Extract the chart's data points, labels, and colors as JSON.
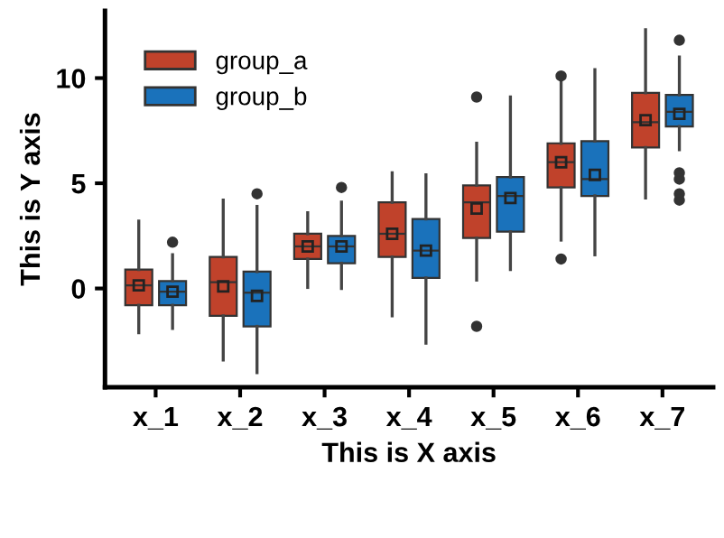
{
  "chart_data": {
    "type": "box",
    "xlabel": "This is X axis",
    "ylabel": "This is Y axis",
    "categories": [
      "x_1",
      "x_2",
      "x_3",
      "x_4",
      "x_5",
      "x_6",
      "x_7"
    ],
    "ylim": [
      -4.7,
      13.2
    ],
    "yticks": [
      0,
      5,
      10
    ],
    "legend": "top left",
    "grid": false,
    "series": [
      {
        "name": "group_a",
        "color": "#c0422b",
        "boxes": [
          {
            "low": -2.1,
            "q1": -0.8,
            "median": 0.15,
            "q3": 0.9,
            "high": 3.2,
            "mean": 0.15
          },
          {
            "low": -3.4,
            "q1": -1.3,
            "median": 0.3,
            "q3": 1.5,
            "high": 4.2,
            "mean": 0.1
          },
          {
            "low": 0.05,
            "q1": 1.4,
            "median": 2.0,
            "q3": 2.6,
            "high": 3.6,
            "mean": 2.0
          },
          {
            "low": -1.3,
            "q1": 1.5,
            "median": 2.6,
            "q3": 4.1,
            "high": 5.5,
            "mean": 2.6
          },
          {
            "low": 0.4,
            "q1": 2.4,
            "median": 4.1,
            "q3": 4.9,
            "high": 6.9,
            "mean": 3.8,
            "outliers": [
              9.1,
              -1.8
            ]
          },
          {
            "low": 2.3,
            "q1": 4.8,
            "median": 6.0,
            "q3": 6.9,
            "high": 9.8,
            "mean": 6.0,
            "outliers": [
              10.1,
              1.4
            ]
          },
          {
            "low": 4.3,
            "q1": 6.7,
            "median": 7.9,
            "q3": 9.3,
            "high": 12.3,
            "mean": 8.0
          }
        ]
      },
      {
        "name": "group_b",
        "color": "#1a72bb",
        "boxes": [
          {
            "low": -1.9,
            "q1": -0.8,
            "median": -0.15,
            "q3": 0.35,
            "high": 1.6,
            "mean": -0.15,
            "outliers": [
              2.2
            ]
          },
          {
            "low": -4.0,
            "q1": -1.8,
            "median": -0.2,
            "q3": 0.8,
            "high": 3.9,
            "mean": -0.35,
            "outliers": [
              4.5
            ]
          },
          {
            "low": 0.0,
            "q1": 1.2,
            "median": 2.0,
            "q3": 2.5,
            "high": 4.1,
            "mean": 2.0,
            "outliers": [
              4.8
            ]
          },
          {
            "low": -2.6,
            "q1": 0.5,
            "median": 1.8,
            "q3": 3.3,
            "high": 5.4,
            "mean": 1.8
          },
          {
            "low": 0.9,
            "q1": 2.7,
            "median": 4.4,
            "q3": 5.3,
            "high": 9.1,
            "mean": 4.3
          },
          {
            "low": 1.6,
            "q1": 4.4,
            "median": 5.2,
            "q3": 7.0,
            "high": 10.4,
            "mean": 5.4
          },
          {
            "low": 6.6,
            "q1": 7.7,
            "median": 8.4,
            "q3": 9.2,
            "high": 11.0,
            "mean": 8.3,
            "outliers": [
              11.8,
              5.5,
              5.2,
              4.5,
              4.2
            ]
          }
        ]
      }
    ]
  }
}
